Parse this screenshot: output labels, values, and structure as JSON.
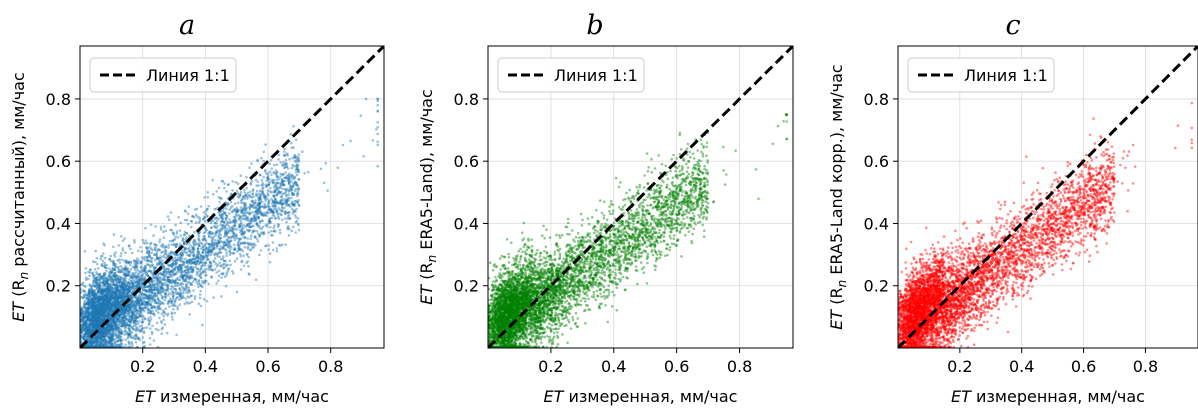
{
  "chart_data": [
    {
      "type": "scatter",
      "panel_label": "a",
      "color": "#1f77b4",
      "xlabel_em": "ET",
      "xlabel_rest": "измеренная, мм/час",
      "ylabel_parts": [
        "ET",
        "(R",
        "n",
        " рассчитанный), мм/час"
      ],
      "xlim": [
        0,
        0.97
      ],
      "ylim": [
        0,
        0.97
      ],
      "xticks": [
        0.2,
        0.4,
        0.6,
        0.8
      ],
      "yticks": [
        0.2,
        0.4,
        0.6,
        0.8
      ],
      "tick_labels": [
        "0.2",
        "0.4",
        "0.6",
        "0.8"
      ],
      "grid": true,
      "legend": {
        "label": "Линия 1:1",
        "location": "top-left"
      },
      "reference_line": {
        "label": "Линия 1:1",
        "points": [
          [
            0,
            0
          ],
          [
            0.97,
            0.97
          ]
        ],
        "style": "dashed",
        "color": "#000000"
      },
      "point_cloud": {
        "n_points": 6000,
        "x_mode": 0.08,
        "x_max": 0.95,
        "y_mode": 0.12,
        "y_max": 0.8,
        "correlation": 0.72,
        "seed": 11
      }
    },
    {
      "type": "scatter",
      "panel_label": "b",
      "color": "#008000",
      "xlabel_em": "ET",
      "xlabel_rest": "измеренная, мм/час",
      "ylabel_parts": [
        "ET",
        "(R",
        "n",
        " ERA5-Land), мм/час"
      ],
      "xlim": [
        0,
        0.97
      ],
      "ylim": [
        0,
        0.97
      ],
      "xticks": [
        0.2,
        0.4,
        0.6,
        0.8
      ],
      "yticks": [
        0.2,
        0.4,
        0.6,
        0.8
      ],
      "tick_labels": [
        "0.2",
        "0.4",
        "0.6",
        "0.8"
      ],
      "grid": true,
      "legend": {
        "label": "Линия 1:1",
        "location": "top-left"
      },
      "reference_line": {
        "label": "Линия 1:1",
        "points": [
          [
            0,
            0
          ],
          [
            0.97,
            0.97
          ]
        ],
        "style": "dashed",
        "color": "#000000"
      },
      "point_cloud": {
        "n_points": 6000,
        "x_mode": 0.08,
        "x_max": 0.95,
        "y_mode": 0.12,
        "y_max": 0.75,
        "correlation": 0.72,
        "seed": 23
      }
    },
    {
      "type": "scatter",
      "panel_label": "c",
      "color": "#ff0000",
      "xlabel_em": "ET",
      "xlabel_rest": "измеренная, мм/час",
      "ylabel_parts": [
        "ET",
        "(R",
        "n",
        " ERA5-Land корр.), мм/час"
      ],
      "xlim": [
        0,
        0.97
      ],
      "ylim": [
        0,
        0.97
      ],
      "xticks": [
        0.2,
        0.4,
        0.6,
        0.8
      ],
      "yticks": [
        0.2,
        0.4,
        0.6,
        0.8
      ],
      "tick_labels": [
        "0.2",
        "0.4",
        "0.6",
        "0.8"
      ],
      "grid": true,
      "legend": {
        "label": "Линия 1:1",
        "location": "top-left"
      },
      "reference_line": {
        "label": "Линия 1:1",
        "points": [
          [
            0,
            0
          ],
          [
            0.97,
            0.97
          ]
        ],
        "style": "dashed",
        "color": "#000000"
      },
      "point_cloud": {
        "n_points": 6000,
        "x_mode": 0.08,
        "x_max": 0.95,
        "y_mode": 0.12,
        "y_max": 0.8,
        "correlation": 0.72,
        "seed": 37
      }
    }
  ]
}
